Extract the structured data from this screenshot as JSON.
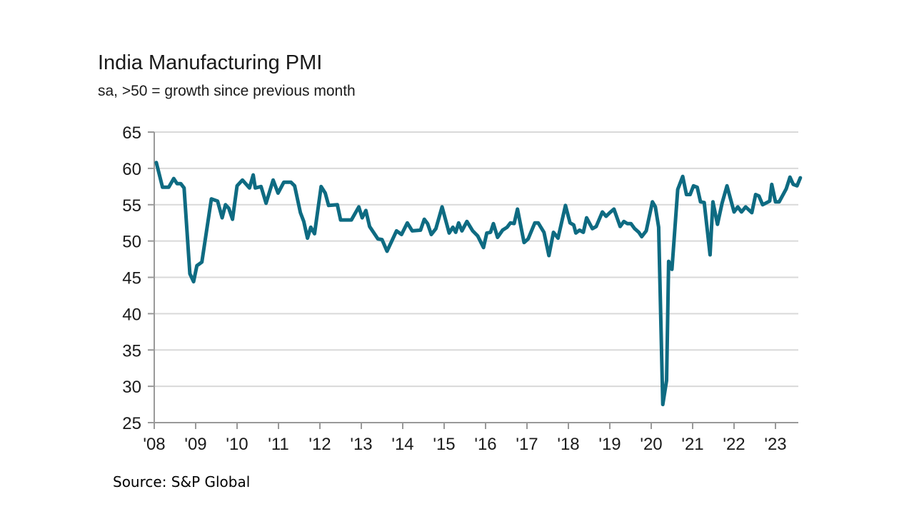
{
  "chart_data": {
    "type": "line",
    "title": "India Manufacturing PMI",
    "subtitle": "sa, >50 = growth since previous month",
    "source": "Source: S&P Global",
    "xlabel": "",
    "ylabel": "",
    "ylim": [
      25,
      65
    ],
    "xlim": [
      2008,
      2023.6
    ],
    "yticks": [
      25,
      30,
      35,
      40,
      45,
      50,
      55,
      60,
      65
    ],
    "xtick_labels": [
      "'08",
      "'09",
      "'10",
      "'11",
      "'12",
      "'13",
      "'14",
      "'15",
      "'16",
      "'17",
      "'18",
      "'19",
      "'20",
      "'21",
      "'22",
      "'23"
    ],
    "xtick_values": [
      2008,
      2009,
      2010,
      2011,
      2012,
      2013,
      2014,
      2015,
      2016,
      2017,
      2018,
      2019,
      2020,
      2021,
      2022,
      2023
    ],
    "grid": "horizontal",
    "legend": "none",
    "line_color": "#0e6b82",
    "series": [
      {
        "x": [
          2008.05,
          2008.2,
          2008.35,
          2008.47,
          2008.55,
          2008.64,
          2008.72,
          2008.86,
          2008.95,
          2009.03,
          2009.15,
          2009.38,
          2009.53,
          2009.64,
          2009.72,
          2009.8,
          2009.89,
          2010.0,
          2010.13,
          2010.3,
          2010.39,
          2010.44,
          2010.58,
          2010.7,
          2010.87,
          2010.99,
          2011.13,
          2011.3,
          2011.39,
          2011.53,
          2011.61,
          2011.7,
          2011.78,
          2011.87,
          2012.03,
          2012.13,
          2012.21,
          2012.42,
          2012.5,
          2012.76,
          2012.94,
          2013.02,
          2013.11,
          2013.2,
          2013.4,
          2013.5,
          2013.62,
          2013.85,
          2013.97,
          2014.11,
          2014.23,
          2014.43,
          2014.52,
          2014.6,
          2014.69,
          2014.8,
          2014.95,
          2015.12,
          2015.21,
          2015.28,
          2015.35,
          2015.43,
          2015.55,
          2015.69,
          2015.81,
          2015.95,
          2016.03,
          2016.12,
          2016.19,
          2016.29,
          2016.41,
          2016.52,
          2016.6,
          2016.69,
          2016.77,
          2016.93,
          2017.03,
          2017.19,
          2017.27,
          2017.41,
          2017.53,
          2017.64,
          2017.75,
          2017.93,
          2018.04,
          2018.13,
          2018.18,
          2018.27,
          2018.36,
          2018.44,
          2018.58,
          2018.67,
          2018.82,
          2018.91,
          2019.0,
          2019.1,
          2019.25,
          2019.34,
          2019.42,
          2019.51,
          2019.6,
          2019.7,
          2019.77,
          2019.88,
          2020.03,
          2020.1,
          2020.18,
          2020.28,
          2020.37,
          2020.42,
          2020.5,
          2020.64,
          2020.76,
          2020.85,
          2020.94,
          2021.02,
          2021.11,
          2021.19,
          2021.28,
          2021.42,
          2021.49,
          2021.6,
          2021.71,
          2021.83,
          2022.0,
          2022.09,
          2022.18,
          2022.28,
          2022.43,
          2022.52,
          2022.6,
          2022.69,
          2022.86,
          2022.91,
          2023.0,
          2023.09,
          2023.26,
          2023.35,
          2023.43,
          2023.52,
          2023.6
        ],
        "y": [
          60.8,
          57.4,
          57.4,
          58.6,
          57.9,
          57.9,
          57.3,
          45.5,
          44.4,
          46.6,
          47.1,
          55.8,
          55.5,
          53.2,
          55.0,
          54.5,
          53.0,
          57.6,
          58.4,
          57.3,
          59.1,
          57.3,
          57.5,
          55.2,
          58.4,
          56.6,
          58.1,
          58.1,
          57.6,
          53.9,
          52.7,
          50.4,
          51.9,
          51.0,
          57.5,
          56.6,
          54.9,
          55.0,
          52.9,
          52.9,
          54.7,
          53.2,
          54.2,
          52.0,
          50.3,
          50.2,
          48.6,
          51.4,
          50.9,
          52.5,
          51.4,
          51.5,
          53.0,
          52.4,
          50.9,
          51.7,
          54.7,
          51.1,
          51.9,
          51.2,
          52.5,
          51.4,
          52.7,
          51.4,
          50.7,
          49.1,
          51.1,
          51.2,
          52.4,
          50.5,
          51.5,
          51.9,
          52.5,
          52.4,
          54.4,
          49.8,
          50.3,
          52.5,
          52.5,
          51.2,
          48.0,
          51.2,
          50.4,
          54.9,
          52.5,
          52.2,
          51.1,
          51.5,
          51.2,
          53.2,
          51.7,
          52.0,
          54.0,
          53.4,
          53.9,
          54.4,
          52.0,
          52.7,
          52.4,
          52.4,
          51.7,
          51.2,
          50.6,
          51.4,
          55.4,
          54.7,
          51.9,
          27.5,
          30.8,
          47.2,
          46.1,
          57.1,
          58.9,
          56.4,
          56.4,
          57.6,
          57.4,
          55.4,
          55.3,
          48.1,
          55.4,
          52.3,
          55.2,
          57.6,
          54.0,
          54.7,
          54.0,
          54.7,
          53.9,
          56.4,
          56.2,
          55.0,
          55.5,
          57.8,
          55.4,
          55.4,
          57.2,
          58.8,
          57.8,
          57.6,
          58.7
        ]
      }
    ]
  }
}
